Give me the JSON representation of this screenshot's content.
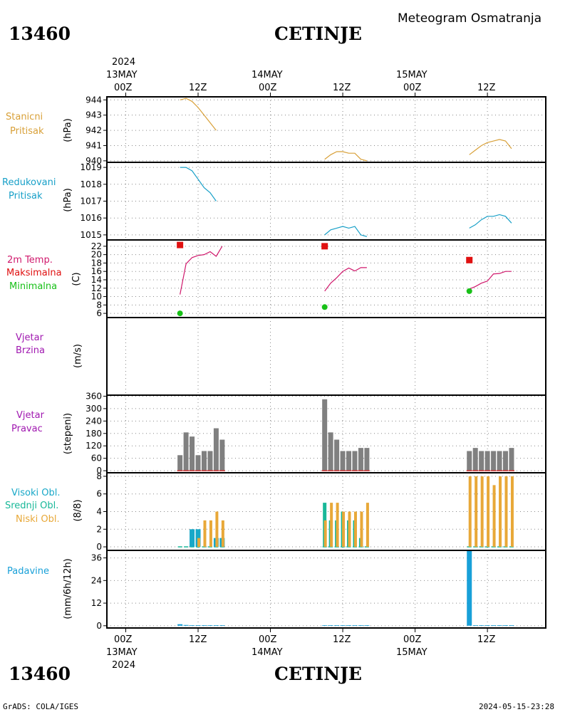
{
  "header": {
    "station_id": "13460",
    "station_name": "CETINJE",
    "title": "Meteogram Osmatranja"
  },
  "footer": {
    "station_id": "13460",
    "station_name": "CETINJE",
    "credit": "GrADS: COLA/IGES",
    "timestamp": "2024-05-15-23:28"
  },
  "time_axis": {
    "top": {
      "year": "2024",
      "dates": [
        "13MAY",
        "14MAY",
        "15MAY"
      ],
      "hours": [
        "00Z",
        "12Z",
        "00Z",
        "12Z",
        "00Z",
        "12Z"
      ]
    },
    "bottom": {
      "year": "2024",
      "dates": [
        "13MAY",
        "14MAY",
        "15MAY"
      ],
      "hours": [
        "00Z",
        "12Z",
        "00Z",
        "12Z",
        "00Z",
        "12Z"
      ]
    }
  },
  "panels": {
    "stanicni": {
      "labels": [
        "Stanicni",
        "Pritisak"
      ],
      "unit": "(hPa)",
      "color": "#d8a038"
    },
    "redukovani": {
      "labels": [
        "Redukovani",
        "Pritisak"
      ],
      "unit": "(hPa)",
      "color": "#18a0c8"
    },
    "temp": {
      "labels": [
        "2m Temp.",
        "Maksimalna",
        "Minimalna"
      ],
      "unit": "(C)",
      "colors": [
        "#d0186c",
        "#e01010",
        "#18c018"
      ]
    },
    "vjetar_brzina": {
      "labels": [
        "Vjetar",
        "Brzina"
      ],
      "unit": "(m/s)",
      "color": "#a018b0"
    },
    "vjetar_pravac": {
      "labels": [
        "Vjetar",
        "Pravac"
      ],
      "unit": "(stepeni)",
      "color": "#a018b0"
    },
    "oblaci": {
      "labels": [
        "Visoki Obl.",
        "Srednji Obl.",
        "Niski Obl."
      ],
      "unit": "(8/8)",
      "colors": [
        "#18a8c8",
        "#18b898",
        "#e8a838"
      ]
    },
    "padavine": {
      "labels": [
        "Padavine"
      ],
      "unit": "(mm/6h/12h)",
      "color": "#18a0d8"
    }
  },
  "chart_data": [
    {
      "type": "line",
      "title": "Stanicni Pritisak",
      "ylabel": "(hPa)",
      "ylim": [
        939.9,
        944.2
      ],
      "yticks": [
        940,
        941,
        942,
        943,
        944
      ],
      "series": [
        {
          "values": [
            [
              9,
              944.0
            ],
            [
              10,
              944.1
            ],
            [
              11,
              943.9
            ],
            [
              12,
              943.5
            ],
            [
              13,
              943.0
            ],
            [
              14,
              942.5
            ],
            [
              15,
              942.0
            ]
          ]
        },
        {
          "values": [
            [
              33,
              940.1
            ],
            [
              34,
              940.4
            ],
            [
              35,
              940.6
            ],
            [
              36,
              940.6
            ],
            [
              37,
              940.5
            ],
            [
              38,
              940.5
            ],
            [
              39,
              940.1
            ],
            [
              40,
              940.0
            ]
          ]
        },
        {
          "values": [
            [
              57,
              940.4
            ],
            [
              58,
              940.7
            ],
            [
              59,
              941.0
            ],
            [
              60,
              941.2
            ],
            [
              61,
              941.3
            ],
            [
              62,
              941.4
            ],
            [
              63,
              941.3
            ],
            [
              64,
              940.8
            ]
          ]
        }
      ]
    },
    {
      "type": "line",
      "title": "Redukovani Pritisak",
      "ylabel": "(hPa)",
      "ylim": [
        1014.7,
        1019.3
      ],
      "yticks": [
        1015,
        1016,
        1017,
        1018,
        1019
      ],
      "series": [
        {
          "values": [
            [
              9,
              1019.0
            ],
            [
              10,
              1019.0
            ],
            [
              11,
              1018.8
            ],
            [
              12,
              1018.3
            ],
            [
              13,
              1017.8
            ],
            [
              14,
              1017.5
            ],
            [
              15,
              1017.0
            ]
          ]
        },
        {
          "values": [
            [
              33,
              1015.0
            ],
            [
              34,
              1015.3
            ],
            [
              35,
              1015.4
            ],
            [
              36,
              1015.5
            ],
            [
              37,
              1015.4
            ],
            [
              38,
              1015.5
            ],
            [
              39,
              1015.0
            ],
            [
              40,
              1014.9
            ]
          ]
        },
        {
          "values": [
            [
              57,
              1015.4
            ],
            [
              58,
              1015.6
            ],
            [
              59,
              1015.9
            ],
            [
              60,
              1016.1
            ],
            [
              61,
              1016.1
            ],
            [
              62,
              1016.2
            ],
            [
              63,
              1016.1
            ],
            [
              64,
              1015.7
            ]
          ]
        }
      ]
    },
    {
      "type": "line",
      "title": "2m Temp.",
      "ylabel": "(C)",
      "ylim": [
        5,
        23.5
      ],
      "yticks": [
        6,
        8,
        10,
        12,
        14,
        16,
        18,
        20,
        22
      ],
      "series": [
        {
          "name": "2m Temp.",
          "values": [
            [
              9,
              10.5
            ],
            [
              10,
              17.8
            ],
            [
              11,
              19.3
            ],
            [
              12,
              19.8
            ],
            [
              13,
              20.0
            ],
            [
              14,
              20.7
            ],
            [
              15,
              19.6
            ],
            [
              16,
              22.0
            ]
          ]
        },
        {
          "name": "2m Temp.",
          "values": [
            [
              33,
              11.3
            ],
            [
              34,
              13.2
            ],
            [
              35,
              14.5
            ],
            [
              36,
              16.0
            ],
            [
              37,
              16.8
            ],
            [
              38,
              16.1
            ],
            [
              39,
              16.9
            ],
            [
              40,
              16.9
            ]
          ]
        },
        {
          "name": "2m Temp.",
          "values": [
            [
              57,
              11.8
            ],
            [
              58,
              12.4
            ],
            [
              59,
              13.2
            ],
            [
              60,
              13.7
            ],
            [
              61,
              15.4
            ],
            [
              62,
              15.5
            ],
            [
              63,
              16.0
            ],
            [
              64,
              16.0
            ]
          ]
        },
        {
          "name": "Maksimalna",
          "values": [
            [
              9,
              22.3
            ],
            [
              33,
              22.0
            ],
            [
              57,
              18.7
            ]
          ]
        },
        {
          "name": "Minimalna",
          "values": [
            [
              9,
              6.0
            ],
            [
              33,
              7.5
            ],
            [
              57,
              11.3
            ]
          ]
        }
      ]
    },
    {
      "type": "bar",
      "title": "Vjetar Brzina",
      "ylabel": "(m/s)",
      "values": []
    },
    {
      "type": "bar",
      "title": "Vjetar Pravac",
      "ylabel": "(stepeni)",
      "ylim": [
        -10,
        365
      ],
      "yticks": [
        0,
        60,
        120,
        180,
        240,
        300,
        360
      ],
      "values": [
        [
          9,
          75
        ],
        [
          10,
          185
        ],
        [
          11,
          165
        ],
        [
          12,
          75
        ],
        [
          13,
          95
        ],
        [
          14,
          95
        ],
        [
          15,
          205
        ],
        [
          16,
          150
        ],
        [
          33,
          345
        ],
        [
          34,
          185
        ],
        [
          35,
          150
        ],
        [
          36,
          95
        ],
        [
          37,
          95
        ],
        [
          38,
          95
        ],
        [
          39,
          110
        ],
        [
          40,
          110
        ],
        [
          57,
          95
        ],
        [
          58,
          110
        ],
        [
          59,
          95
        ],
        [
          60,
          95
        ],
        [
          61,
          95
        ],
        [
          62,
          95
        ],
        [
          63,
          95
        ],
        [
          64,
          110
        ]
      ]
    },
    {
      "type": "bar",
      "title": "Oblaci",
      "ylabel": "(8/8)",
      "ylim": [
        -0.4,
        8.4
      ],
      "yticks": [
        0,
        2,
        4,
        6,
        8
      ],
      "series": [
        {
          "name": "Visoki Obl.",
          "values": [
            [
              11,
              2
            ],
            [
              12,
              2
            ],
            [
              15,
              1
            ],
            [
              16,
              1
            ]
          ]
        },
        {
          "name": "Srednji Obl.",
          "values": [
            [
              33,
              5
            ],
            [
              34,
              3
            ],
            [
              35,
              3
            ],
            [
              36,
              4
            ],
            [
              37,
              3
            ],
            [
              38,
              3
            ],
            [
              39,
              1
            ]
          ]
        },
        {
          "name": "Niski Obl.",
          "values": [
            [
              12,
              1
            ],
            [
              13,
              3
            ],
            [
              14,
              3
            ],
            [
              15,
              4
            ],
            [
              16,
              3
            ],
            [
              33,
              3
            ],
            [
              34,
              5
            ],
            [
              35,
              5
            ],
            [
              36,
              4
            ],
            [
              37,
              4
            ],
            [
              38,
              4
            ],
            [
              39,
              4
            ],
            [
              40,
              5
            ],
            [
              57,
              8
            ],
            [
              58,
              8
            ],
            [
              59,
              8
            ],
            [
              60,
              8
            ],
            [
              61,
              7
            ],
            [
              62,
              8
            ],
            [
              63,
              8
            ],
            [
              64,
              8
            ]
          ]
        }
      ]
    },
    {
      "type": "bar",
      "title": "Padavine",
      "ylabel": "(mm/6h/12h)",
      "ylim": [
        -1.2,
        40
      ],
      "yticks": [
        0,
        12,
        24,
        36
      ],
      "values": [
        [
          9,
          0.8
        ],
        [
          10,
          0.4
        ],
        [
          11,
          0.3
        ],
        [
          12,
          0.3
        ],
        [
          13,
          0.3
        ],
        [
          14,
          0.3
        ],
        [
          15,
          0.3
        ],
        [
          16,
          0.3
        ],
        [
          33,
          0.3
        ],
        [
          34,
          0.3
        ],
        [
          35,
          0.3
        ],
        [
          36,
          0.3
        ],
        [
          37,
          0.3
        ],
        [
          38,
          0.3
        ],
        [
          39,
          0.3
        ],
        [
          40,
          0.3
        ],
        [
          57,
          40
        ],
        [
          58,
          0.3
        ],
        [
          59,
          0.3
        ],
        [
          60,
          0.3
        ],
        [
          61,
          0.3
        ],
        [
          62,
          0.3
        ],
        [
          63,
          0.3
        ],
        [
          64,
          0.3
        ]
      ]
    }
  ]
}
